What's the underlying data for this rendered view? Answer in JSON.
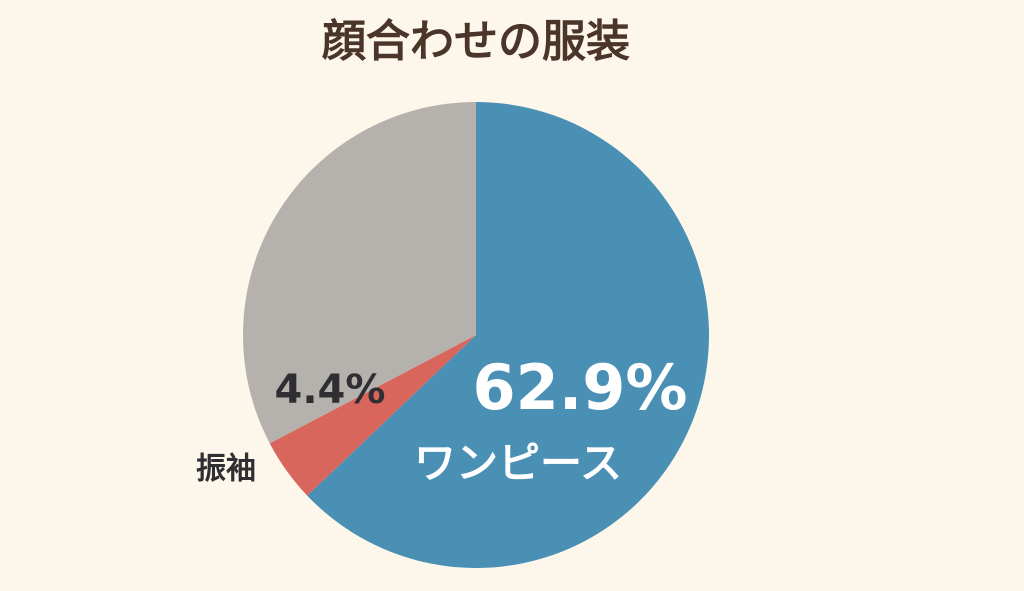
{
  "chart_data": {
    "type": "pie",
    "title": "顔合わせの服装",
    "categories": [
      "ワンピース",
      "振袖",
      null
    ],
    "values": [
      62.9,
      4.4,
      32.7
    ],
    "value_labels": [
      "62.9%",
      "4.4%",
      null
    ],
    "colors": [
      "#4a90b4",
      "#d9665c",
      "#b5b2ae"
    ]
  }
}
